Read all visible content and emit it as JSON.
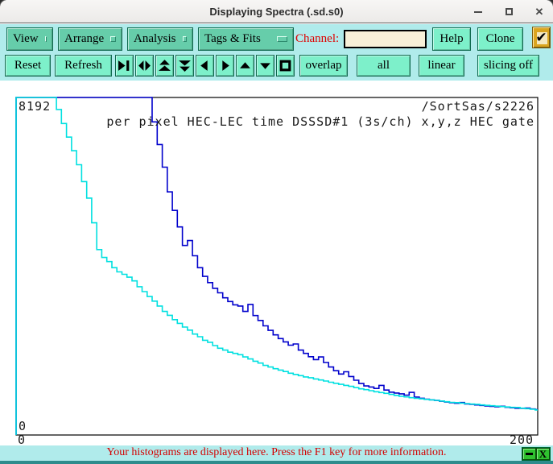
{
  "window": {
    "title": "Displaying Spectra (.sd.s0)",
    "close_glyph": "✕"
  },
  "menubar": {
    "menus": [
      {
        "label": "View"
      },
      {
        "label": "Arrange"
      },
      {
        "label": "Analysis"
      },
      {
        "label": "Tags & Fits"
      }
    ],
    "channel_label": "Channel:",
    "channel_value": "",
    "help_label": "Help",
    "clone_label": "Clone",
    "checkbox_checked": true,
    "check_glyph": "✔"
  },
  "toolbar": {
    "reset_label": "Reset",
    "refresh_label": "Refresh",
    "nav_icons": [
      "collapse-horizontal",
      "expand-horizontal",
      "double-up",
      "double-down",
      "left",
      "right",
      "up",
      "down",
      "full-view"
    ],
    "overlap_label": "overlap",
    "all_label": "all",
    "linear_label": "linear",
    "slicing_label": "slicing off"
  },
  "chart_data": {
    "type": "line",
    "subtype": "step-histogram",
    "scale": "linear",
    "title_line1": "/SortSas/s2226",
    "title_line2": "per pixel HEC-LEC time DSSSD#1 (3s/ch) x,y,z HEC gate",
    "x_range": [
      0,
      207
    ],
    "y_range": [
      0,
      8192
    ],
    "x_ticks": [
      "0",
      "200"
    ],
    "y_ticks": [
      "0",
      "8192"
    ],
    "bin_width": 2,
    "grid": false,
    "legend": "none",
    "series": [
      {
        "name": "hec-lec-time-blue",
        "color": "#0000cc",
        "counts": [
          8192,
          8192,
          8192,
          8192,
          8192,
          8192,
          8192,
          8192,
          8192,
          8192,
          8192,
          8192,
          8192,
          8192,
          8192,
          8192,
          8192,
          8192,
          8192,
          8192,
          8192,
          8192,
          8192,
          8192,
          8192,
          8192,
          8192,
          7600,
          7050,
          6500,
          5900,
          5450,
          5050,
          4600,
          4720,
          4350,
          4060,
          3850,
          3700,
          3560,
          3450,
          3330,
          3240,
          3160,
          3130,
          3000,
          3170,
          2900,
          2780,
          2650,
          2540,
          2430,
          2340,
          2260,
          2180,
          2210,
          2060,
          1980,
          1900,
          1830,
          1895,
          1760,
          1650,
          1560,
          1480,
          1535,
          1420,
          1330,
          1250,
          1190,
          1165,
          1130,
          1205,
          1090,
          1040,
          1018,
          1000,
          968,
          1035,
          920,
          892,
          870,
          855,
          838,
          820,
          800,
          782,
          770,
          788,
          755,
          742,
          730,
          718,
          705,
          695,
          685,
          698,
          672,
          660,
          650,
          645,
          654,
          632,
          618
        ]
      },
      {
        "name": "hec-lec-time-cyan",
        "color": "#00e0e0",
        "counts": [
          8192,
          8192,
          8192,
          8192,
          8192,
          8192,
          8192,
          8192,
          7900,
          7560,
          7230,
          6900,
          6560,
          6150,
          5750,
          5150,
          4500,
          4310,
          4210,
          4060,
          3960,
          3900,
          3830,
          3740,
          3600,
          3480,
          3360,
          3250,
          3130,
          3000,
          2905,
          2800,
          2710,
          2620,
          2545,
          2450,
          2385,
          2300,
          2250,
          2170,
          2105,
          2060,
          2010,
          1980,
          1950,
          1895,
          1845,
          1790,
          1745,
          1690,
          1650,
          1610,
          1575,
          1540,
          1500,
          1470,
          1440,
          1410,
          1390,
          1360,
          1335,
          1310,
          1280,
          1255,
          1230,
          1205,
          1180,
          1150,
          1120,
          1100,
          1075,
          1050,
          1030,
          1010,
          985,
          962,
          940,
          925,
          905,
          890,
          878,
          865,
          852,
          840,
          825,
          808,
          792,
          785,
          775,
          762,
          750,
          745,
          730,
          720,
          710,
          700,
          690,
          680,
          670,
          668,
          652,
          640,
          625,
          608
        ]
      }
    ]
  },
  "statusbar": {
    "message": "Your histograms are displayed here. Press the F1 key for more information.",
    "close_glyph": "X"
  }
}
